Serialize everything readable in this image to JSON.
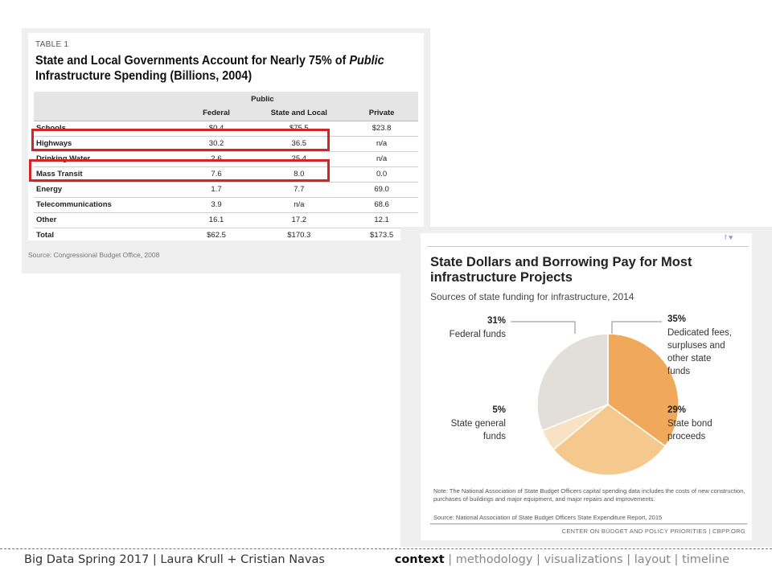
{
  "table": {
    "label": "TABLE 1",
    "title_pre": "State and Local Governments Account for Nearly 75% of ",
    "title_em": "Public",
    "title_post": " Infrastructure Spending (Billions, 2004)",
    "group_header": "Public",
    "columns": [
      "",
      "Federal",
      "State and Local",
      "Private"
    ],
    "rows": [
      {
        "name": "Schools",
        "federal": "$0.4",
        "state_local": "$75.5",
        "private": "$23.8"
      },
      {
        "name": "Highways",
        "federal": "30.2",
        "state_local": "36.5",
        "private": "n/a"
      },
      {
        "name": "Drinking Water",
        "federal": "2.6",
        "state_local": "25.4",
        "private": "n/a"
      },
      {
        "name": "Mass Transit",
        "federal": "7.6",
        "state_local": "8.0",
        "private": "0.0"
      },
      {
        "name": "Energy",
        "federal": "1.7",
        "state_local": "7.7",
        "private": "69.0"
      },
      {
        "name": "Telecommunications",
        "federal": "3.9",
        "state_local": "n/a",
        "private": "68.6"
      },
      {
        "name": "Other",
        "federal": "16.1",
        "state_local": "17.2",
        "private": "12.1"
      },
      {
        "name": "Total",
        "federal": "$62.5",
        "state_local": "$170.3",
        "private": "$173.5"
      }
    ],
    "source": "Source: Congressional Budget Office, 2008",
    "highlight_color": "#d42426"
  },
  "chart_data": {
    "type": "pie",
    "title": "State Dollars and Borrowing Pay for Most infrastructure Projects",
    "subtitle": "Sources of state funding for infrastructure, 2014",
    "slices": [
      {
        "pct": "35%",
        "value": 35,
        "label": "Dedicated fees,\nsurpluses and\nother state\nfunds",
        "color": "#f0a95a"
      },
      {
        "pct": "29%",
        "value": 29,
        "label": "State bond\nproceeds",
        "color": "#f5c88e"
      },
      {
        "pct": "5%",
        "value": 5,
        "label": "State general\nfunds",
        "color": "#f9e1c4"
      },
      {
        "pct": "31%",
        "value": 31,
        "label": "Federal funds",
        "color": "#e2deda"
      }
    ],
    "note": "Note: The National Association of State Budget Officers capital spending data includes the costs of new construction, purchases of buildings and major equipment, and major repairs and improvements.",
    "source": "Source: National Association of State Budget Officers State Expenditure Report, 2015",
    "org": "CENTER ON BUDGET AND POLICY PRIORITIES | CBPP.ORG",
    "social": "f  ♥"
  },
  "footer": {
    "left": "Big Data Spring 2017 | Laura Krull + Cristian Navas",
    "nav": [
      "context",
      "methodology",
      "visualizations",
      "layout",
      "timeline"
    ],
    "active": "context",
    "separator": " | "
  }
}
